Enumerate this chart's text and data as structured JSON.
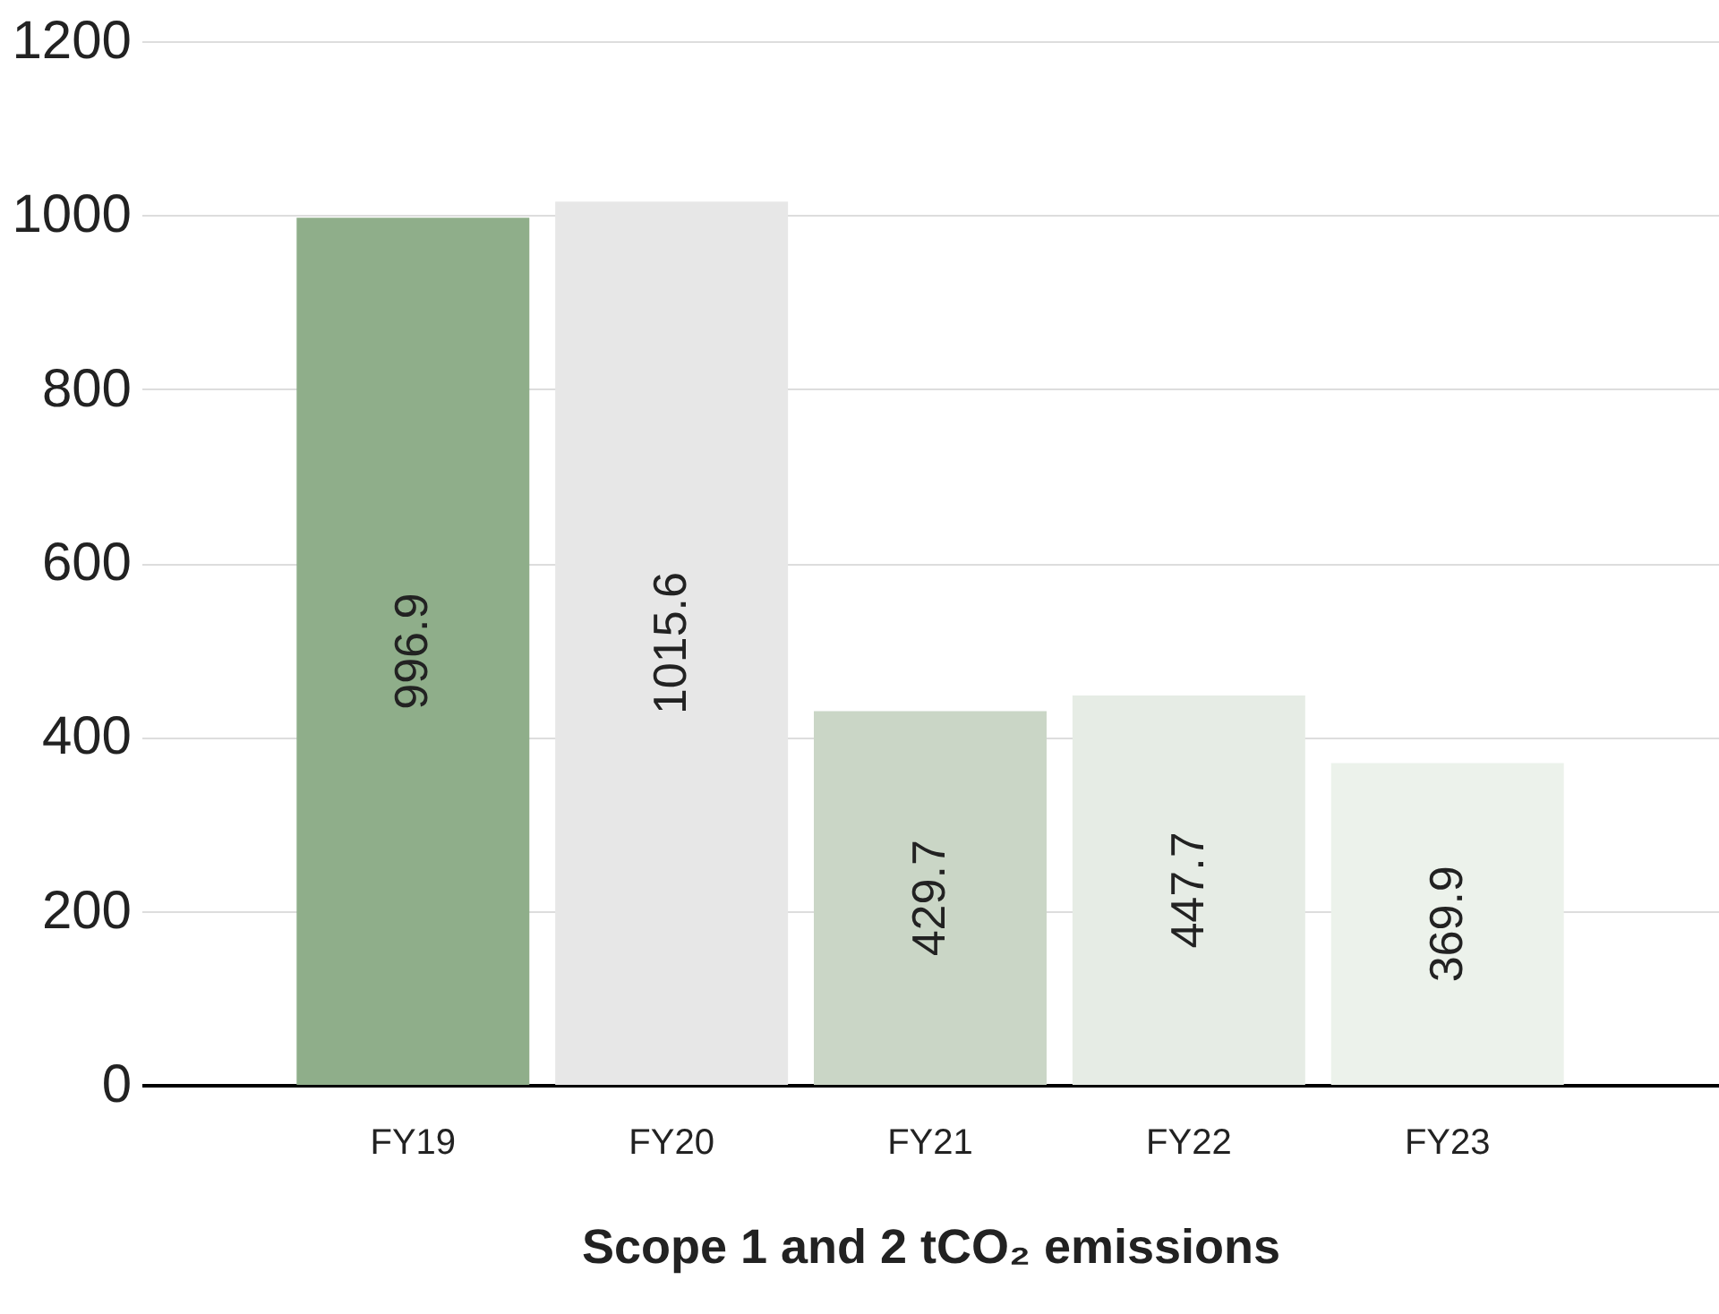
{
  "chart_data": {
    "type": "bar",
    "xlabel": "Scope 1 and 2 tCO₂ emissions",
    "categories": [
      "FY19",
      "FY20",
      "FY21",
      "FY22",
      "FY23"
    ],
    "values": [
      996.9,
      1015.6,
      429.7,
      447.7,
      369.9
    ],
    "colors": [
      "#8fae8a",
      "#e7e7e7",
      "#cad6c6",
      "#e6ece5",
      "#ecf2eb"
    ],
    "data_labels": true,
    "ylim": [
      0,
      1200
    ],
    "yticks": [
      0,
      200,
      400,
      600,
      800,
      1000,
      1200
    ],
    "grid": "y"
  }
}
